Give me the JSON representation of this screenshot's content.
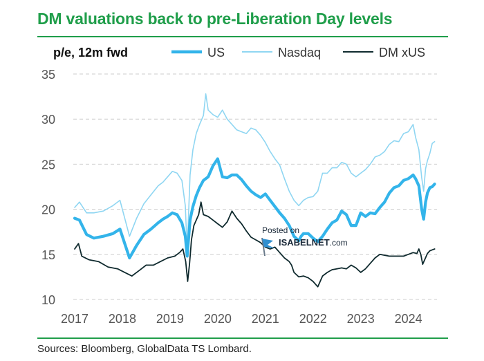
{
  "title": "DM valuations back to pre-Liberation Day levels",
  "source": "Sources: Bloomberg, GlobalData TS Lombard.",
  "watermark": {
    "line1": "Posted on",
    "brand": "ISABELNET",
    "suffix": ".com"
  },
  "colors": {
    "title": "#1f9e4a",
    "us": "#33b4ea",
    "nasdaq": "#8fd6f2",
    "dmxus": "#0f2a2e",
    "grid": "#cccccc",
    "tick": "#555555"
  },
  "chart_data": {
    "type": "line",
    "ylabel": "p/e, 12m fwd",
    "xlabel": "",
    "ylim": [
      10,
      35
    ],
    "xlim": [
      2017.0,
      2024.6
    ],
    "yticks": [
      10,
      15,
      20,
      25,
      30,
      35
    ],
    "xticks": [
      2017,
      2018,
      2019,
      2020,
      2021,
      2022,
      2023,
      2024
    ],
    "grid": "horizontal dashed",
    "legend": "top",
    "series": [
      {
        "name": "US",
        "x": [
          2017.0,
          2017.1,
          2017.25,
          2017.4,
          2017.6,
          2017.8,
          2017.95,
          2018.05,
          2018.15,
          2018.3,
          2018.45,
          2018.6,
          2018.75,
          2018.85,
          2018.95,
          2019.05,
          2019.15,
          2019.25,
          2019.32,
          2019.36,
          2019.42,
          2019.48,
          2019.55,
          2019.62,
          2019.7,
          2019.8,
          2019.9,
          2020.0,
          2020.1,
          2020.2,
          2020.3,
          2020.4,
          2020.5,
          2020.6,
          2020.7,
          2020.8,
          2020.9,
          2021.0,
          2021.1,
          2021.2,
          2021.3,
          2021.4,
          2021.5,
          2021.6,
          2021.7,
          2021.75,
          2021.8,
          2021.9,
          2022.0,
          2022.1,
          2022.2,
          2022.3,
          2022.4,
          2022.5,
          2022.6,
          2022.7,
          2022.8,
          2022.9,
          2023.0,
          2023.1,
          2023.2,
          2023.3,
          2023.4,
          2023.5,
          2023.6,
          2023.7,
          2023.8,
          2023.9,
          2024.0,
          2024.1,
          2024.15,
          2024.22,
          2024.28,
          2024.32,
          2024.36,
          2024.4,
          2024.45,
          2024.5,
          2024.55
        ],
        "values": [
          19.0,
          18.8,
          17.2,
          16.8,
          17.0,
          17.3,
          17.8,
          16.2,
          14.6,
          16.0,
          17.2,
          17.8,
          18.5,
          18.9,
          19.2,
          19.6,
          19.4,
          18.5,
          17.0,
          14.8,
          18.8,
          20.3,
          21.5,
          22.4,
          23.2,
          23.6,
          24.8,
          25.6,
          23.6,
          23.5,
          23.8,
          23.8,
          23.3,
          22.6,
          22.0,
          21.6,
          21.3,
          21.7,
          21.0,
          20.3,
          19.6,
          19.0,
          18.2,
          17.0,
          16.5,
          17.0,
          17.3,
          17.3,
          16.8,
          16.4,
          17.0,
          17.8,
          18.5,
          18.8,
          19.8,
          19.4,
          18.2,
          18.2,
          19.6,
          19.2,
          19.6,
          19.5,
          20.2,
          20.8,
          21.8,
          22.4,
          22.6,
          23.2,
          23.4,
          23.8,
          23.4,
          22.6,
          20.0,
          18.9,
          20.8,
          21.8,
          22.4,
          22.5,
          22.8
        ]
      },
      {
        "name": "Nasdaq",
        "x": [
          2017.0,
          2017.1,
          2017.25,
          2017.4,
          2017.6,
          2017.8,
          2017.95,
          2018.05,
          2018.15,
          2018.3,
          2018.45,
          2018.6,
          2018.75,
          2018.85,
          2018.95,
          2019.05,
          2019.15,
          2019.25,
          2019.32,
          2019.36,
          2019.42,
          2019.48,
          2019.55,
          2019.62,
          2019.7,
          2019.75,
          2019.8,
          2019.9,
          2020.0,
          2020.1,
          2020.2,
          2020.3,
          2020.4,
          2020.5,
          2020.6,
          2020.7,
          2020.8,
          2020.9,
          2021.0,
          2021.1,
          2021.2,
          2021.3,
          2021.4,
          2021.5,
          2021.6,
          2021.7,
          2021.8,
          2021.9,
          2022.0,
          2022.1,
          2022.2,
          2022.3,
          2022.4,
          2022.5,
          2022.6,
          2022.7,
          2022.8,
          2022.9,
          2023.0,
          2023.1,
          2023.2,
          2023.3,
          2023.4,
          2023.5,
          2023.6,
          2023.7,
          2023.8,
          2023.9,
          2024.0,
          2024.1,
          2024.15,
          2024.22,
          2024.28,
          2024.32,
          2024.36,
          2024.4,
          2024.45,
          2024.5,
          2024.55
        ],
        "values": [
          20.2,
          20.8,
          19.6,
          19.6,
          19.8,
          20.4,
          21.0,
          19.0,
          17.0,
          19.0,
          20.6,
          21.6,
          22.6,
          23.0,
          23.6,
          24.2,
          24.0,
          23.2,
          20.4,
          15.4,
          23.8,
          26.6,
          28.4,
          29.4,
          30.4,
          32.8,
          31.0,
          30.5,
          30.2,
          31.0,
          30.0,
          29.4,
          28.8,
          28.6,
          28.4,
          29.0,
          28.8,
          28.2,
          27.4,
          26.4,
          25.6,
          24.9,
          23.4,
          22.0,
          21.0,
          20.4,
          21.0,
          21.3,
          21.4,
          22.0,
          24.0,
          24.0,
          24.6,
          24.6,
          25.2,
          25.0,
          24.0,
          23.6,
          24.0,
          24.4,
          25.0,
          25.8,
          26.0,
          26.4,
          27.2,
          27.6,
          27.5,
          28.4,
          28.6,
          29.4,
          28.0,
          26.6,
          23.5,
          22.0,
          24.5,
          25.4,
          26.2,
          27.3,
          27.5
        ]
      },
      {
        "name": "DM xUS",
        "x": [
          2017.0,
          2017.08,
          2017.15,
          2017.3,
          2017.5,
          2017.7,
          2017.9,
          2018.05,
          2018.2,
          2018.35,
          2018.5,
          2018.65,
          2018.8,
          2018.95,
          2019.1,
          2019.2,
          2019.27,
          2019.33,
          2019.37,
          2019.41,
          2019.45,
          2019.5,
          2019.6,
          2019.65,
          2019.7,
          2019.8,
          2019.9,
          2020.0,
          2020.1,
          2020.2,
          2020.3,
          2020.4,
          2020.5,
          2020.6,
          2020.7,
          2020.8,
          2020.9,
          2021.0,
          2021.1,
          2021.2,
          2021.3,
          2021.4,
          2021.5,
          2021.55,
          2021.6,
          2021.7,
          2021.8,
          2021.9,
          2022.0,
          2022.1,
          2022.2,
          2022.3,
          2022.4,
          2022.5,
          2022.6,
          2022.7,
          2022.8,
          2022.9,
          2023.0,
          2023.1,
          2023.2,
          2023.3,
          2023.4,
          2023.5,
          2023.6,
          2023.7,
          2023.8,
          2023.9,
          2024.0,
          2024.1,
          2024.18,
          2024.22,
          2024.26,
          2024.3,
          2024.35,
          2024.4,
          2024.45,
          2024.5,
          2024.55
        ],
        "values": [
          15.6,
          16.2,
          14.8,
          14.4,
          14.2,
          13.6,
          13.4,
          13.0,
          12.6,
          13.2,
          13.8,
          13.8,
          14.2,
          14.6,
          14.8,
          15.2,
          15.6,
          14.2,
          12.0,
          14.0,
          16.6,
          18.2,
          19.4,
          20.8,
          19.4,
          19.2,
          18.8,
          18.4,
          18.0,
          18.6,
          19.8,
          19.0,
          18.4,
          17.6,
          16.9,
          16.6,
          16.3,
          15.8,
          15.6,
          15.8,
          15.2,
          14.6,
          14.2,
          13.8,
          13.0,
          12.5,
          12.6,
          12.4,
          12.0,
          11.4,
          12.6,
          13.0,
          13.3,
          13.4,
          13.5,
          13.4,
          13.8,
          13.5,
          13.0,
          13.4,
          14.0,
          14.6,
          15.0,
          14.9,
          14.8,
          14.8,
          14.8,
          14.8,
          15.0,
          15.2,
          15.1,
          15.6,
          15.0,
          13.9,
          14.5,
          15.1,
          15.4,
          15.5,
          15.6
        ]
      }
    ]
  }
}
